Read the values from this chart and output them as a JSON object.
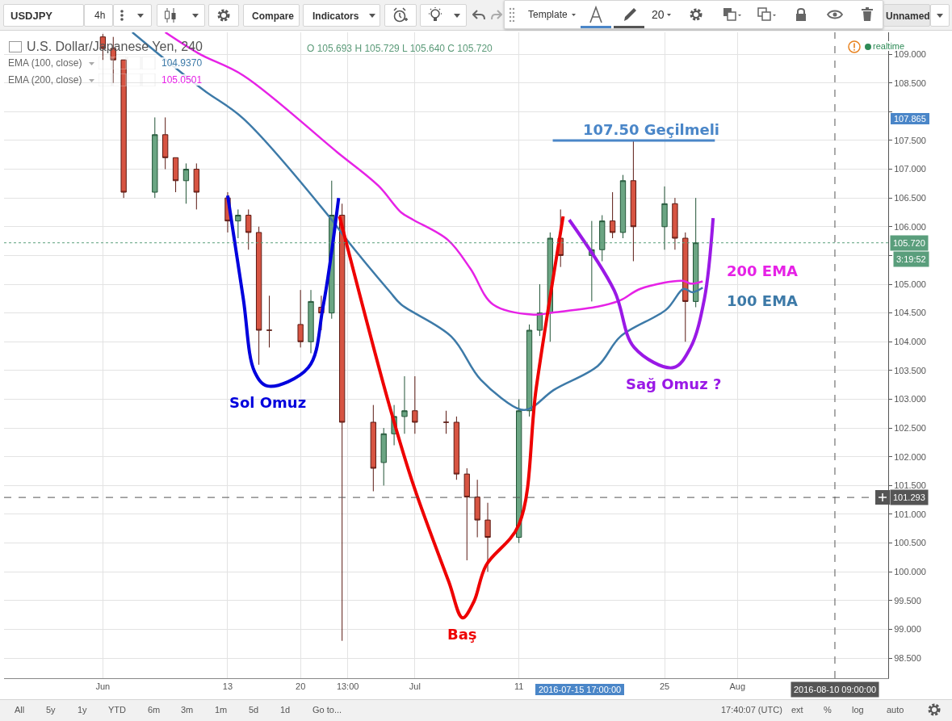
{
  "chart_data": {
    "type": "candlestick",
    "title": "U.S. Dollar/Japanese Yen, 240",
    "x": [
      "2016-06-01",
      "2016-06-02",
      "2016-06-03",
      "2016-06-06",
      "2016-06-07",
      "2016-06-08",
      "2016-06-09",
      "2016-06-10",
      "2016-06-13",
      "2016-06-14",
      "2016-06-15",
      "2016-06-16",
      "2016-06-17",
      "2016-06-20",
      "2016-06-21",
      "2016-06-22",
      "2016-06-23",
      "2016-06-24",
      "2016-06-27",
      "2016-06-28",
      "2016-06-29",
      "2016-06-30",
      "2016-07-01",
      "2016-07-04",
      "2016-07-05",
      "2016-07-06",
      "2016-07-07",
      "2016-07-08",
      "2016-07-11",
      "2016-07-12",
      "2016-07-13",
      "2016-07-14",
      "2016-07-15",
      "2016-07-18",
      "2016-07-19",
      "2016-07-20",
      "2016-07-21",
      "2016-07-22",
      "2016-07-25",
      "2016-07-26",
      "2016-07-27",
      "2016-07-28"
    ],
    "ohlc": [
      [
        109.3,
        109.35,
        108.9,
        109.1
      ],
      [
        109.1,
        109.3,
        108.5,
        108.9
      ],
      [
        108.9,
        108.9,
        106.5,
        106.6
      ],
      [
        106.6,
        107.9,
        106.5,
        107.6
      ],
      [
        107.6,
        107.9,
        107.0,
        107.2
      ],
      [
        107.2,
        107.2,
        106.6,
        106.8
      ],
      [
        106.8,
        107.1,
        106.4,
        107.0
      ],
      [
        107.0,
        107.1,
        106.3,
        106.6
      ],
      [
        106.5,
        106.6,
        105.9,
        106.1
      ],
      [
        106.1,
        106.3,
        105.8,
        106.2
      ],
      [
        106.2,
        106.3,
        105.6,
        105.9
      ],
      [
        105.9,
        106.0,
        103.6,
        104.2
      ],
      [
        104.2,
        104.8,
        103.9,
        104.2
      ],
      [
        104.3,
        104.9,
        103.9,
        104.0
      ],
      [
        104.0,
        104.9,
        103.8,
        104.7
      ],
      [
        104.6,
        104.8,
        104.2,
        104.5
      ],
      [
        104.5,
        106.8,
        104.4,
        106.2
      ],
      [
        106.2,
        106.4,
        98.8,
        102.6
      ],
      [
        102.6,
        102.9,
        101.4,
        101.8
      ],
      [
        101.9,
        102.5,
        101.5,
        102.4
      ],
      [
        102.4,
        102.9,
        102.2,
        102.7
      ],
      [
        102.7,
        103.4,
        102.4,
        102.8
      ],
      [
        102.8,
        103.4,
        102.4,
        102.6
      ],
      [
        102.6,
        102.8,
        102.4,
        102.6
      ],
      [
        102.6,
        102.7,
        101.6,
        101.7
      ],
      [
        101.7,
        101.8,
        100.2,
        101.3
      ],
      [
        101.3,
        101.6,
        100.6,
        100.9
      ],
      [
        100.9,
        101.2,
        100.0,
        100.6
      ],
      [
        100.6,
        103.0,
        100.5,
        102.8
      ],
      [
        102.8,
        104.3,
        102.7,
        104.2
      ],
      [
        104.2,
        105.0,
        104.1,
        104.5
      ],
      [
        104.5,
        105.9,
        104.0,
        105.8
      ],
      [
        105.8,
        106.3,
        105.3,
        105.5
      ],
      [
        105.5,
        106.1,
        104.7,
        105.6
      ],
      [
        105.6,
        106.2,
        105.4,
        106.1
      ],
      [
        106.1,
        106.6,
        105.8,
        105.9
      ],
      [
        105.9,
        106.9,
        105.8,
        106.8
      ],
      [
        106.8,
        107.5,
        105.4,
        106.0
      ],
      [
        106.0,
        106.7,
        105.6,
        106.4
      ],
      [
        106.4,
        106.5,
        105.6,
        105.8
      ],
      [
        105.8,
        105.9,
        104.0,
        104.7
      ],
      [
        104.7,
        106.5,
        104.6,
        105.72
      ]
    ],
    "series": [
      {
        "type": "line",
        "name": "100 EMA",
        "color": "#3d7aa8",
        "x": [
          "2016-06-03T20:00",
          "2016-06-10T12:00",
          "2016-06-14T12:00",
          "2016-06-23T00:00",
          "2016-06-24T08:00",
          "2016-06-28T14:00",
          "2016-06-29T16:00",
          "2016-07-04T12:00",
          "2016-07-07T08:00",
          "2016-07-11T04:00",
          "2016-07-12T04:00",
          "2016-07-14T08:00",
          "2016-07-18T14:00",
          "2016-07-20T18:00",
          "2016-07-25T04:00",
          "2016-07-26T20:00",
          "2016-07-27T16:00",
          "2016-07-28T16:00"
        ],
        "values": [
          109.38,
          108.4,
          107.88,
          106.12,
          105.8,
          104.87,
          104.65,
          104.09,
          103.34,
          102.82,
          102.85,
          103.16,
          103.58,
          104.09,
          104.56,
          104.92,
          104.86,
          104.94
        ]
      },
      {
        "type": "line",
        "name": "200 EMA",
        "color": "#e622e6",
        "x": [
          "2016-06-07T00:00",
          "2016-06-10T08:00",
          "2016-06-14T12:00",
          "2016-06-23T12:00",
          "2016-06-27T12:00",
          "2016-06-29T16:00",
          "2016-06-30T20:00",
          "2016-07-04T04:00",
          "2016-07-06T08:00",
          "2016-07-08T12:00",
          "2016-07-12T10:00",
          "2016-07-14T08:00",
          "2016-07-18T14:00",
          "2016-07-20T18:00",
          "2016-07-22T16:00",
          "2016-07-26T18:00",
          "2016-07-27T12:00",
          "2016-07-28T16:00"
        ],
        "values": [
          109.38,
          109.0,
          108.63,
          107.3,
          106.71,
          106.25,
          106.12,
          105.77,
          105.27,
          104.65,
          104.47,
          104.51,
          104.61,
          104.72,
          104.92,
          105.06,
          105.01,
          105.05
        ]
      },
      {
        "type": "line",
        "name": "Sol Omuz",
        "color": "#0000dd",
        "x": [
          "2016-06-13T00:00",
          "2016-06-14T12:00",
          "2016-06-15T14:00",
          "2016-06-16T20:00",
          "2016-06-20T18:00",
          "2016-06-22T04:00",
          "2016-06-23T16:00"
        ],
        "values": [
          106.54,
          104.75,
          103.48,
          103.23,
          103.55,
          104.61,
          106.5
        ]
      },
      {
        "type": "line",
        "name": "Baş",
        "color": "#ee0000",
        "x": [
          "2016-06-23T18:00",
          "2016-06-28T12:00",
          "2016-06-30T20:00",
          "2016-07-04T06:00",
          "2016-07-05T14:00",
          "2016-07-06T16:00",
          "2016-07-07T20:00",
          "2016-07-11T00:00",
          "2016-07-12T16:00",
          "2016-07-15T06:00"
        ],
        "values": [
          106.18,
          102.92,
          101.52,
          99.83,
          99.2,
          99.48,
          100.11,
          100.82,
          103.2,
          106.18
        ]
      },
      {
        "type": "line",
        "name": "Sağ Omuz ?",
        "color": "#9a19e6",
        "x": [
          "2016-07-15T20:00",
          "2016-07-20T04:00",
          "2016-07-22T02:00",
          "2016-07-25T20:00",
          "2016-07-27T12:00",
          "2016-07-28T20:00",
          "2016-07-29T16:00"
        ],
        "values": [
          106.12,
          104.89,
          103.9,
          103.55,
          103.9,
          104.75,
          106.15
        ]
      },
      {
        "type": "line",
        "name": "107.50 Geçilmeli",
        "color": "#4a86c8",
        "x": [
          "2016-07-14T06:00",
          "2016-07-29T20:00"
        ],
        "values": [
          107.5,
          107.5
        ]
      }
    ],
    "xlim": [
      "2016-05-22T12:00",
      "2016-08-15T12:00"
    ],
    "ylim": [
      98.15,
      109.38
    ],
    "xticks": [
      {
        "value": "2016-06-01",
        "label": "Jun"
      },
      {
        "value": "2016-06-13",
        "label": "13"
      },
      {
        "value": "2016-06-20",
        "label": "20"
      },
      {
        "value": "2016-06-24T13:00",
        "label": "13:00"
      },
      {
        "value": "2016-07-01",
        "label": "Jul"
      },
      {
        "value": "2016-07-11",
        "label": "11"
      },
      {
        "value": "2016-07-25",
        "label": "25"
      },
      {
        "value": "2016-08-01",
        "label": "Aug"
      }
    ],
    "yticks": [
      {
        "value": 98.5,
        "label": "98.500"
      },
      {
        "value": 99,
        "label": "99.000"
      },
      {
        "value": 99.5,
        "label": "99.500"
      },
      {
        "value": 100,
        "label": "100.000"
      },
      {
        "value": 100.5,
        "label": "100.500"
      },
      {
        "value": 101,
        "label": "101.000"
      },
      {
        "value": 101.5,
        "label": "101.500"
      },
      {
        "value": 102,
        "label": "102.000"
      },
      {
        "value": 102.5,
        "label": "102.500"
      },
      {
        "value": 103,
        "label": "103.000"
      },
      {
        "value": 103.5,
        "label": "103.500"
      },
      {
        "value": 104,
        "label": "104.000"
      },
      {
        "value": 104.5,
        "label": "104.500"
      },
      {
        "value": 105,
        "label": "105.000"
      },
      {
        "value": 105.5,
        "label": null
      },
      {
        "value": 106,
        "label": "106.000"
      },
      {
        "value": 106.5,
        "label": "106.500"
      },
      {
        "value": 107,
        "label": "107.000"
      },
      {
        "value": 107.5,
        "label": "107.500"
      },
      {
        "value": 108,
        "label": null
      },
      {
        "value": 108.5,
        "label": "108.500"
      },
      {
        "value": 109,
        "label": "109.000"
      }
    ],
    "grid": true,
    "ref_lines": [
      {
        "axis": "y",
        "value": 105.72,
        "label": "105.720",
        "color": "#5a9e7c",
        "line_style": "dotted"
      },
      {
        "axis": "y",
        "value": 101.293,
        "label": "101.293",
        "color": "#555555",
        "line_style": "dashed"
      },
      {
        "axis": "x",
        "value": "2016-08-10T09:00",
        "label": "2016-08-10 09:00:00",
        "color": "#555555",
        "line_style": "dashed"
      }
    ],
    "annotations": [
      "USDJPY",
      "4h",
      "Compare",
      "Indicators",
      "Template",
      "20",
      "Unnamed",
      "O 105.693 H 105.729 L 105.640 C 105.720",
      "EMA (100, close)",
      "104.9370",
      "EMA (200, close)",
      "105.0501",
      "realtime",
      "3:19:52",
      "107.865",
      "2016-07-15 17:00:00",
      "All",
      "5y",
      "1y",
      "YTD",
      "6m",
      "3m",
      "1m",
      "5d",
      "1d",
      "Go to...",
      "17:40:07 (UTC)",
      "ext",
      "%",
      "log",
      "auto"
    ]
  }
}
